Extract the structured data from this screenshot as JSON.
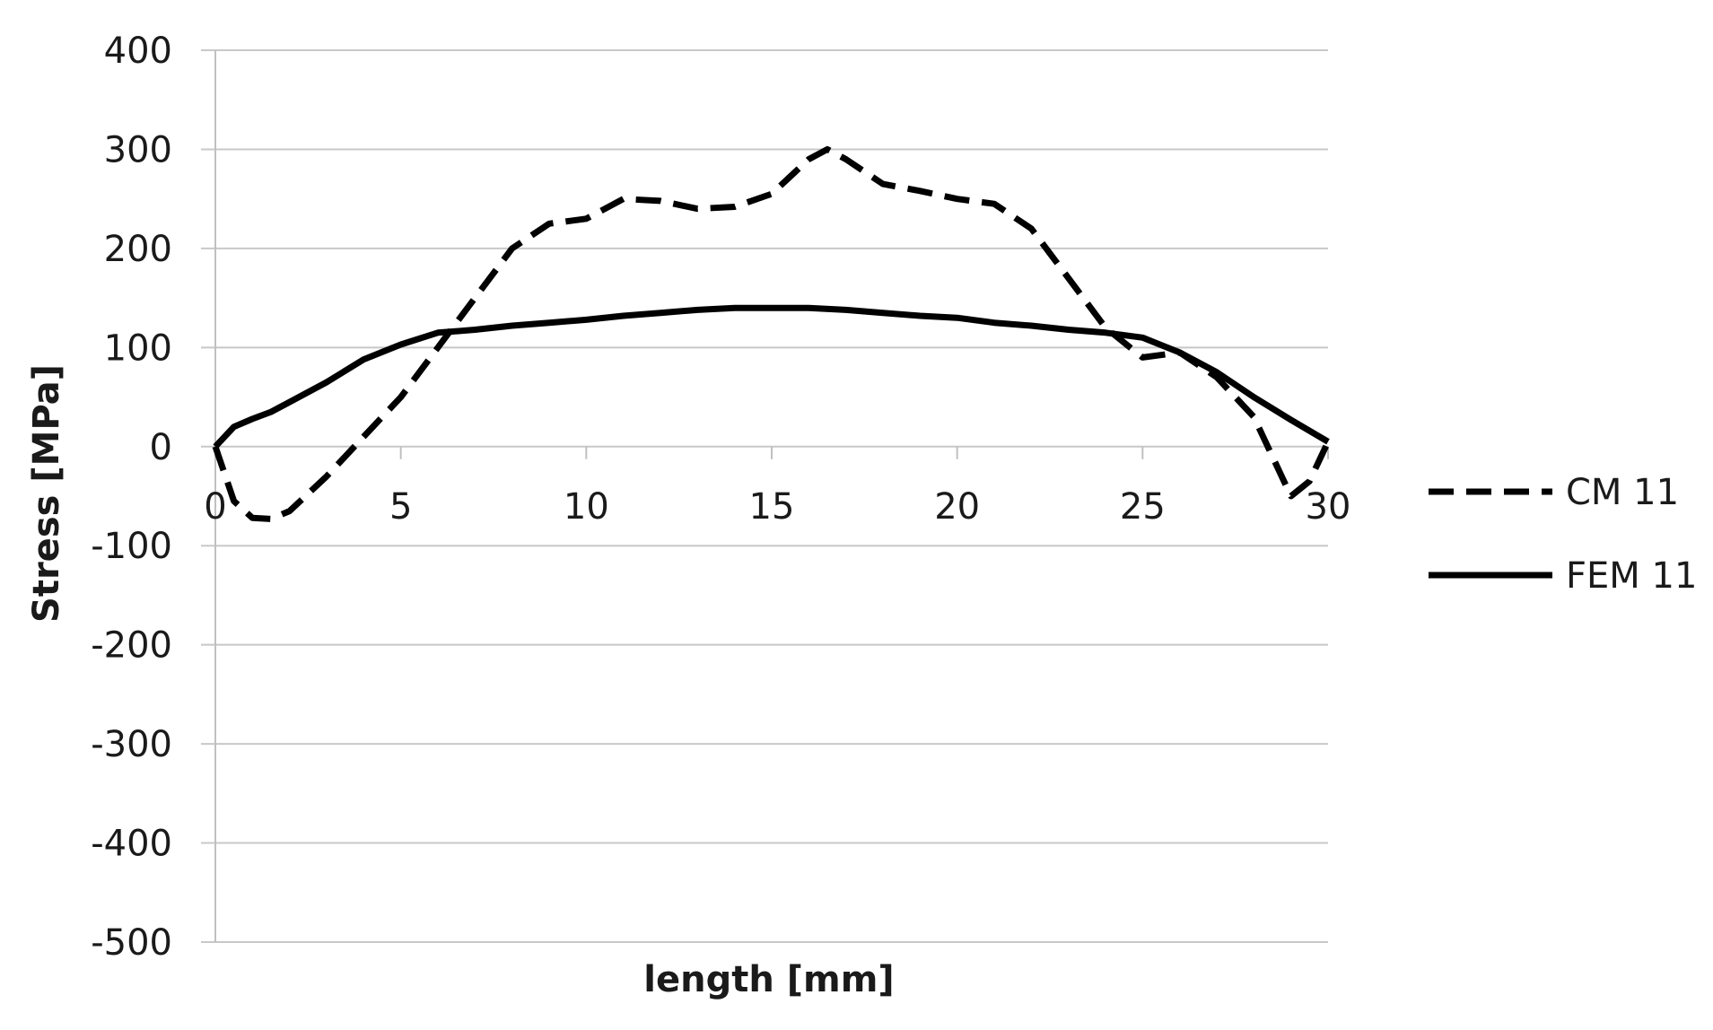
{
  "chart_data": {
    "type": "line",
    "xlabel": "length [mm]",
    "ylabel": "Stress [MPa]",
    "xlim": [
      0,
      30
    ],
    "ylim": [
      -500,
      400
    ],
    "xticks": [
      0,
      5,
      10,
      15,
      20,
      25,
      30
    ],
    "yticks": [
      400,
      300,
      200,
      100,
      0,
      -100,
      -200,
      -300,
      -400,
      -500
    ],
    "grid": "horizontal",
    "legend_position": "right",
    "series": [
      {
        "name": "CM 11",
        "style": "dashed",
        "color": "#000000",
        "x": [
          0,
          0.5,
          1,
          1.5,
          2,
          3,
          4,
          5,
          6,
          7,
          8,
          9,
          10,
          11,
          12,
          13,
          14,
          15,
          16,
          16.5,
          17,
          18,
          19,
          20,
          21,
          22,
          23,
          24,
          25,
          26,
          27,
          28,
          29,
          29.5,
          30
        ],
        "y": [
          0,
          -55,
          -72,
          -73,
          -65,
          -30,
          10,
          50,
          100,
          150,
          200,
          225,
          230,
          250,
          248,
          240,
          242,
          255,
          290,
          300,
          290,
          265,
          258,
          250,
          245,
          220,
          170,
          120,
          90,
          95,
          70,
          30,
          -50,
          -35,
          5
        ]
      },
      {
        "name": "FEM 11",
        "style": "solid",
        "color": "#000000",
        "x": [
          0,
          0.5,
          1,
          1.5,
          2,
          3,
          4,
          5,
          6,
          7,
          8,
          9,
          10,
          11,
          12,
          13,
          14,
          15,
          16,
          17,
          18,
          19,
          20,
          21,
          22,
          23,
          24,
          25,
          26,
          27,
          28,
          29,
          30
        ],
        "y": [
          0,
          20,
          28,
          35,
          45,
          65,
          88,
          103,
          115,
          118,
          122,
          125,
          128,
          132,
          135,
          138,
          140,
          140,
          140,
          138,
          135,
          132,
          130,
          125,
          122,
          118,
          115,
          110,
          95,
          75,
          50,
          27,
          5
        ]
      }
    ]
  }
}
